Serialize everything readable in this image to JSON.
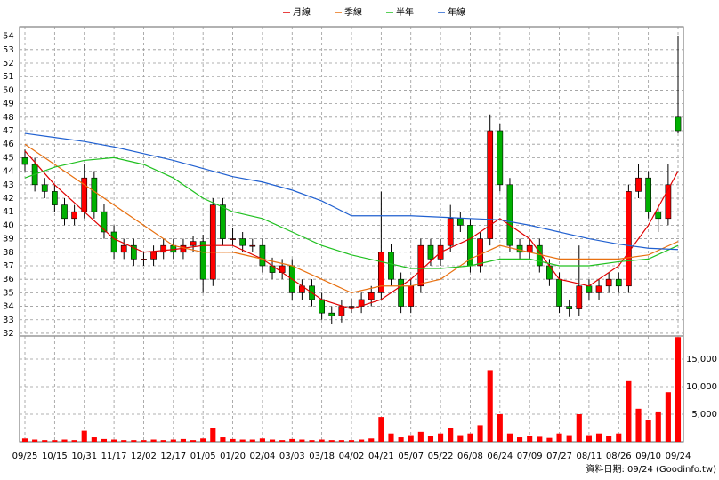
{
  "chart_data": {
    "type": "candlestick",
    "categories": [
      "09/25",
      "10/15",
      "10/31",
      "11/17",
      "12/02",
      "12/17",
      "01/05",
      "01/20",
      "02/04",
      "03/03",
      "03/18",
      "04/02",
      "04/21",
      "05/07",
      "05/22",
      "06/08",
      "06/24",
      "07/09",
      "07/27",
      "08/11",
      "08/26",
      "09/10",
      "09/24"
    ],
    "open": [
      45,
      44.5,
      43,
      42.5,
      41.5,
      40.5,
      41,
      43.5,
      41,
      39.5,
      38,
      38.5,
      37.5,
      37.5,
      38,
      38.5,
      38,
      38.5,
      38.8,
      36,
      41.5,
      39,
      39,
      38.5,
      38.5,
      37,
      36.5,
      37,
      35,
      35.5,
      34.5,
      33.5,
      33.3,
      34,
      34,
      34.5,
      35,
      38,
      36,
      34,
      35.5,
      38.5,
      37.5,
      38.5,
      40.5,
      40,
      37,
      39,
      47,
      43,
      38.5,
      38,
      38.5,
      37,
      36,
      34,
      33.8,
      35.5,
      35,
      35.5,
      36,
      35.5,
      42.5,
      43.5,
      41,
      40.5,
      48
    ],
    "high": [
      45.6,
      45,
      43.5,
      43,
      42,
      41.5,
      44.5,
      44,
      41.6,
      40,
      39,
      39,
      38,
      38.5,
      39,
      39,
      39,
      39.2,
      39.3,
      42,
      42,
      39.8,
      39.5,
      39,
      39,
      37.6,
      37.5,
      37.5,
      36,
      36,
      35,
      34,
      34.5,
      34.6,
      35,
      35.5,
      42.5,
      38.6,
      36.5,
      36,
      39,
      39,
      39,
      41.5,
      41,
      40.5,
      39.5,
      48.2,
      47.5,
      43.5,
      39,
      39,
      39,
      37.5,
      36.5,
      34.5,
      38.5,
      36,
      36,
      36.5,
      36.5,
      43,
      44.5,
      44,
      41.5,
      44.5,
      54
    ],
    "low": [
      44,
      42.5,
      42,
      41,
      40,
      40,
      40.5,
      40.5,
      39,
      37.5,
      37.5,
      37,
      37,
      37,
      37.5,
      37.5,
      37.5,
      38,
      35,
      35.5,
      38.5,
      38.5,
      38,
      38,
      36.5,
      36,
      36,
      34.5,
      34.5,
      34,
      33,
      32.7,
      32.8,
      33.5,
      33.5,
      34,
      34.5,
      35.5,
      33.5,
      33.5,
      35,
      37,
      37,
      38,
      39.5,
      36.5,
      36.5,
      38.5,
      42.5,
      38,
      37.5,
      37.5,
      36.5,
      35.5,
      33.5,
      33.2,
      33.3,
      34.5,
      34.5,
      35,
      35,
      35,
      42,
      40.5,
      39.5,
      40,
      46.8
    ],
    "close": [
      44.5,
      43,
      42.5,
      41.5,
      40.5,
      41,
      43.5,
      41,
      39.5,
      38,
      38.5,
      37.5,
      37.5,
      38,
      38.5,
      38,
      38.5,
      38.8,
      36,
      41.5,
      39,
      39,
      38.5,
      38.5,
      37,
      36.5,
      37,
      35,
      35.5,
      34.5,
      33.5,
      33.3,
      34,
      34,
      34.5,
      35,
      38,
      36,
      34,
      35.5,
      38.5,
      37.5,
      38.5,
      40.5,
      40,
      37,
      39,
      47,
      43,
      38.5,
      38,
      38.5,
      37,
      36,
      34,
      33.8,
      35.5,
      35,
      35.5,
      36,
      35.5,
      42.5,
      43.5,
      41,
      40.5,
      43,
      47
    ],
    "volume": [
      600,
      400,
      300,
      300,
      400,
      300,
      2000,
      800,
      500,
      400,
      300,
      300,
      300,
      400,
      300,
      400,
      500,
      300,
      600,
      2500,
      800,
      500,
      400,
      400,
      600,
      400,
      300,
      500,
      400,
      300,
      400,
      300,
      300,
      300,
      400,
      600,
      4500,
      1500,
      800,
      1200,
      1800,
      1000,
      1500,
      2500,
      1200,
      1500,
      3000,
      13000,
      5000,
      1500,
      800,
      1000,
      900,
      700,
      1500,
      1200,
      5000,
      1200,
      1500,
      1000,
      1500,
      11000,
      6000,
      4000,
      5500,
      9000,
      19000
    ],
    "ylim": [
      31.8,
      54.7
    ],
    "yticks": [
      32,
      33,
      34,
      35,
      36,
      37,
      38,
      39,
      40,
      41,
      42,
      43,
      44,
      45,
      46,
      47,
      48,
      49,
      50,
      51,
      52,
      53,
      54
    ],
    "y2lim": [
      0,
      19200
    ],
    "y2ticks": [
      {
        "value": 5000,
        "label": "5,000"
      },
      {
        "value": 10000,
        "label": "10,000"
      },
      {
        "value": 15000,
        "label": "15,000"
      }
    ],
    "series": [
      {
        "name": "月線",
        "color": "#e00000",
        "values": [
          45.5,
          43,
          41,
          39,
          38,
          38.2,
          38.5,
          38.5,
          37.5,
          36,
          34.5,
          33.8,
          34.5,
          36,
          38,
          39,
          40.5,
          39,
          36,
          35.5,
          37,
          40,
          44
        ]
      },
      {
        "name": "季線",
        "color": "#e87010",
        "values": [
          46,
          44.5,
          43,
          41.5,
          40,
          38.5,
          38,
          38,
          37.5,
          37,
          36,
          35,
          35.5,
          35.5,
          36,
          37.5,
          38.5,
          38,
          37.5,
          37.5,
          37.5,
          37.8,
          38.8
        ]
      },
      {
        "name": "半年",
        "color": "#20c020",
        "values": [
          43.5,
          44.3,
          44.8,
          45,
          44.5,
          43.5,
          42,
          41,
          40.5,
          39.5,
          38.5,
          37.8,
          37.3,
          36.8,
          36.8,
          37,
          37.5,
          37.5,
          37,
          37,
          37.3,
          37.5,
          38.5
        ]
      },
      {
        "name": "年線",
        "color": "#2060d0",
        "values": [
          46.8,
          46.5,
          46.2,
          45.8,
          45.3,
          44.8,
          44.2,
          43.6,
          43.2,
          42.6,
          41.8,
          40.7,
          40.7,
          40.7,
          40.6,
          40.5,
          40.4,
          40,
          39.5,
          39,
          38.6,
          38.3,
          38.2
        ]
      }
    ],
    "up_color": "#ff0000",
    "down_color": "#00b000",
    "volume_color": "#ff0000",
    "grid": true,
    "footer": "資料日期: 09/24  (Goodinfo.tw)"
  }
}
